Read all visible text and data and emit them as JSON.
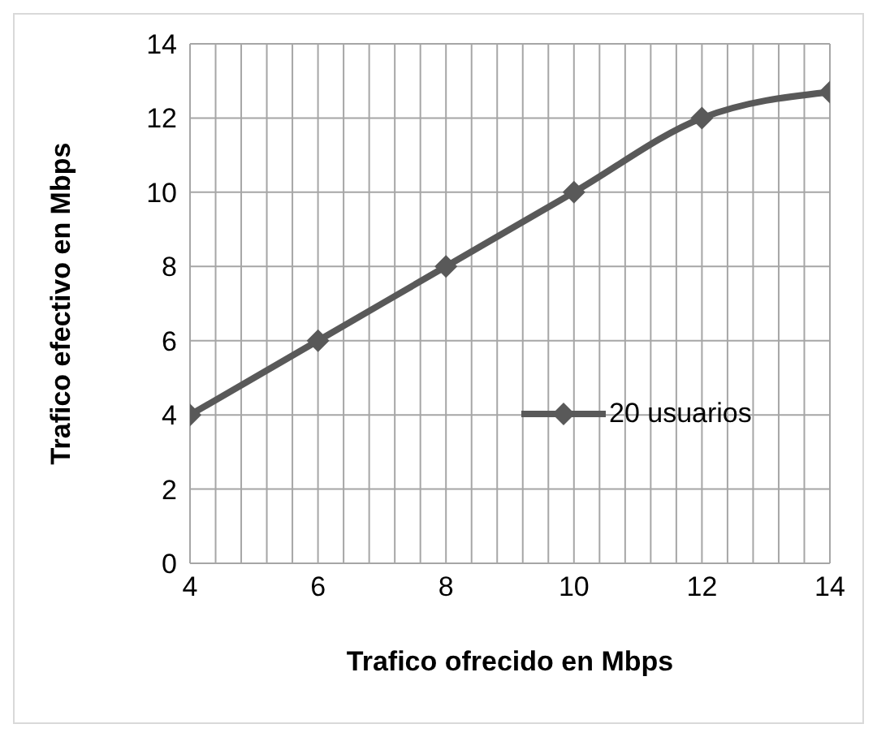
{
  "chart_data": {
    "type": "line",
    "xlabel": "Trafico ofrecido en Mbps",
    "ylabel": "Trafico efectivo en Mbps",
    "x": [
      4,
      6,
      8,
      10,
      12,
      14
    ],
    "series": [
      {
        "name": "20 usuarios",
        "color": "#595959",
        "values": [
          4,
          6,
          8,
          10,
          12,
          12.7
        ]
      }
    ],
    "xlim": [
      4,
      14
    ],
    "xticks": [
      4,
      {
        "value": 4.4,
        "label": null
      },
      {
        "value": 4.8,
        "label": null
      },
      {
        "value": 5.2,
        "label": null
      },
      {
        "value": 5.6,
        "label": null
      },
      6,
      {
        "value": 6.4,
        "label": null
      },
      {
        "value": 6.8,
        "label": null
      },
      {
        "value": 7.2,
        "label": null
      },
      {
        "value": 7.6,
        "label": null
      },
      8,
      {
        "value": 8.4,
        "label": null
      },
      {
        "value": 8.8,
        "label": null
      },
      {
        "value": 9.2,
        "label": null
      },
      {
        "value": 9.6,
        "label": null
      },
      10,
      {
        "value": 10.4,
        "label": null
      },
      {
        "value": 10.8,
        "label": null
      },
      {
        "value": 11.2,
        "label": null
      },
      {
        "value": 11.6,
        "label": null
      },
      12,
      {
        "value": 12.4,
        "label": null
      },
      {
        "value": 12.8,
        "label": null
      },
      {
        "value": 13.2,
        "label": null
      },
      {
        "value": 13.6,
        "label": null
      },
      14
    ],
    "ylim": [
      0,
      14
    ],
    "yticks": [
      0,
      2,
      4,
      6,
      8,
      10,
      12,
      14
    ],
    "grid": true,
    "legend": "right",
    "marker": "diamond",
    "line_style": "solid"
  }
}
